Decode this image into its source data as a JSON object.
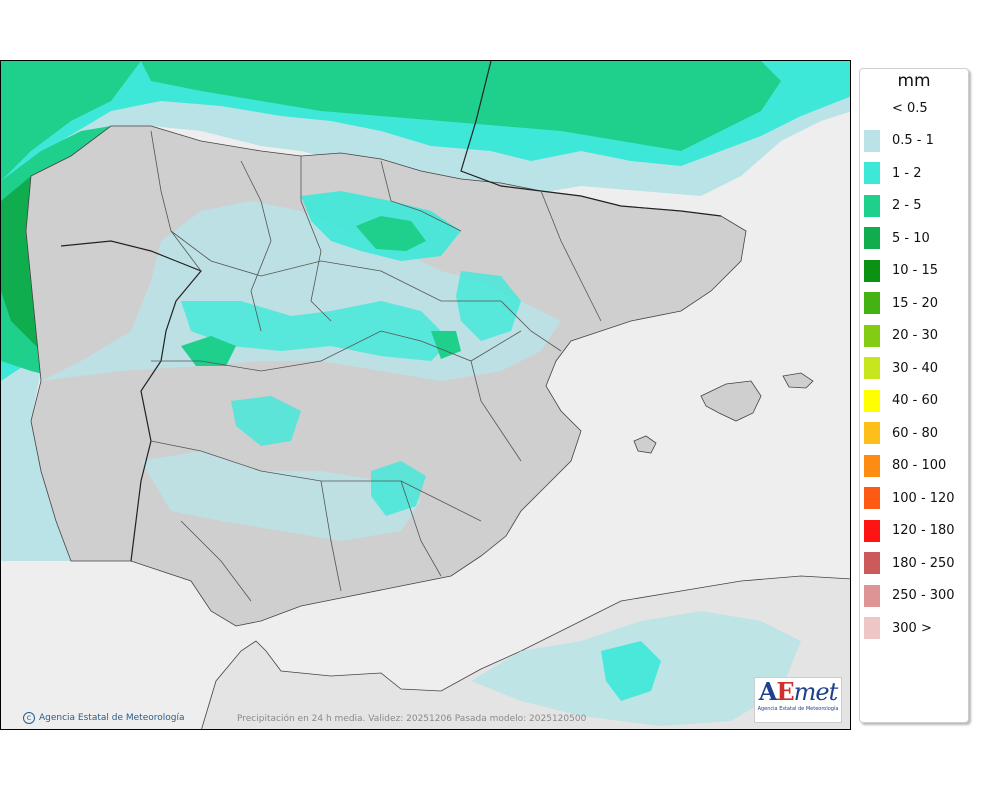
{
  "map": {
    "credit": "Agencia Estatal de Meteorología",
    "caption": "Precipitación en 24 h media. Validez: 20251206 Pasada modelo: 2025120500",
    "logo": {
      "mark_a": "A",
      "mark_e": "E",
      "mark_rest": "met",
      "sub": "Agencia Estatal de Meteorología"
    }
  },
  "legend": {
    "unit": "mm",
    "items": [
      {
        "label": "< 0.5",
        "color": "#ffffff"
      },
      {
        "label": "0.5 - 1",
        "color": "#b9e3e6"
      },
      {
        "label": "1 - 2",
        "color": "#3de8d8"
      },
      {
        "label": "2 - 5",
        "color": "#1fcf8c"
      },
      {
        "label": "5 - 10",
        "color": "#10ad4e"
      },
      {
        "label": "10 - 15",
        "color": "#0c9212"
      },
      {
        "label": "15 - 20",
        "color": "#45b213"
      },
      {
        "label": "20 - 30",
        "color": "#82cc14"
      },
      {
        "label": "30 - 40",
        "color": "#c7e61e"
      },
      {
        "label": "40 - 60",
        "color": "#ffff00"
      },
      {
        "label": "60 - 80",
        "color": "#ffbf1a"
      },
      {
        "label": "80 - 100",
        "color": "#ff8c12"
      },
      {
        "label": "100 - 120",
        "color": "#ff5a14"
      },
      {
        "label": "120 - 180",
        "color": "#ff1414"
      },
      {
        "label": "180 - 250",
        "color": "#cd5a5a"
      },
      {
        "label": "250 - 300",
        "color": "#de9494"
      },
      {
        "label": "300 >",
        "color": "#efc6c6"
      }
    ]
  }
}
